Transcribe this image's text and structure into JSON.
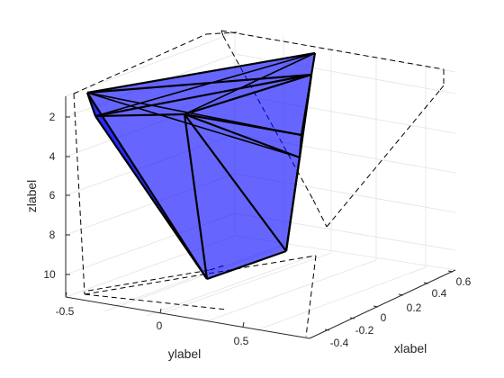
{
  "chart_data": {
    "type": "3d-surface",
    "title": "",
    "xlabel": "xlabel",
    "ylabel": "ylabel",
    "zlabel": "zlabel",
    "z_direction": "reversed (10 at bottom, 2 at top)",
    "grid": true,
    "xticks": [
      "-0.4",
      "-0.2",
      "0",
      "0.2",
      "0.4",
      "0.6"
    ],
    "yticks": [
      "-0.5",
      "0",
      "0.5"
    ],
    "zticks": [
      "2",
      "4",
      "6",
      "8",
      "10"
    ],
    "face_color": "#0000ff",
    "face_alpha": 0.6,
    "edge_color": "#000000",
    "bounding_box_style": "dashed",
    "vertex_count": 9,
    "triangle_count": 10
  }
}
